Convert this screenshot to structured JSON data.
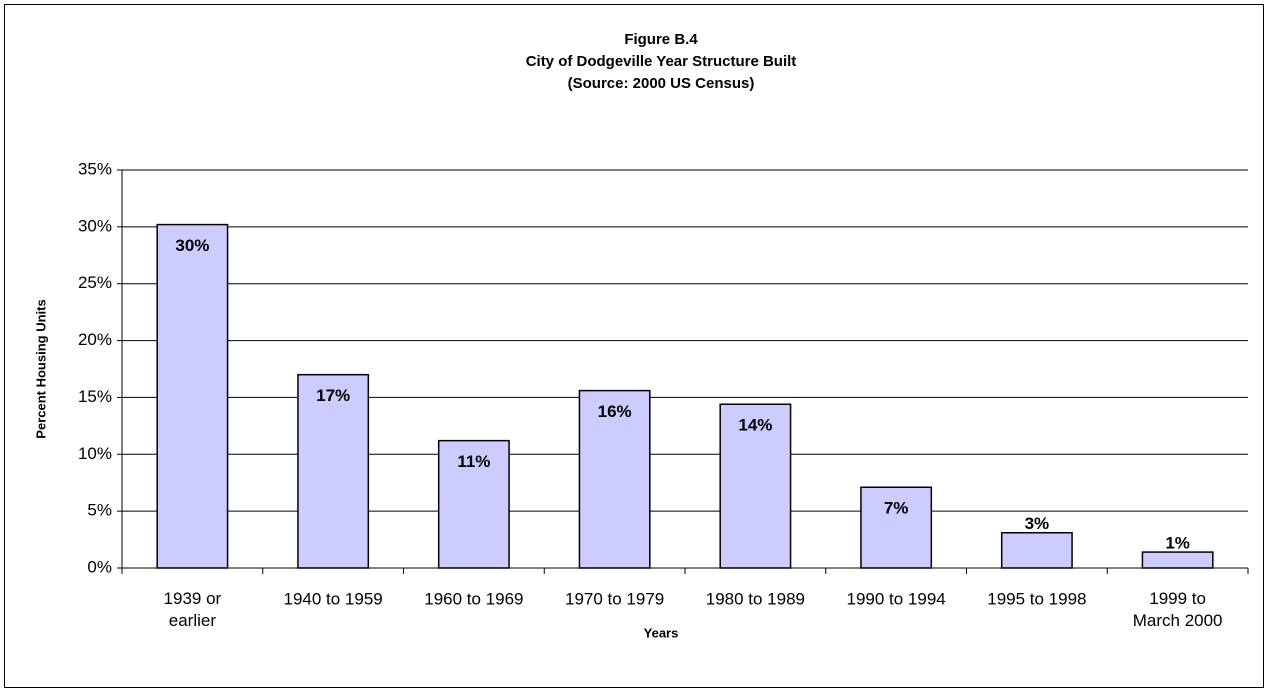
{
  "chart_data": {
    "type": "bar",
    "title": "Figure B.4",
    "subtitle": "City of Dodgeville Year Structure Built",
    "source": "(Source:  2000 US Census)",
    "x_label": "Years",
    "y_label": "Percent Housing Units",
    "categories": [
      "1939 or\nearlier",
      "1940 to 1959",
      "1960 to 1969",
      "1970 to 1979",
      "1980 to 1989",
      "1990 to 1994",
      "1995 to 1998",
      "1999 to\nMarch 2000"
    ],
    "values": [
      30.2,
      17.0,
      11.2,
      15.6,
      14.4,
      7.1,
      3.1,
      1.4
    ],
    "value_labels": [
      "30%",
      "17%",
      "11%",
      "16%",
      "14%",
      "7%",
      "3%",
      "1%"
    ],
    "color": "#ccccff",
    "ylim": [
      0,
      35
    ],
    "yticks": [
      {
        "value": 0,
        "label": "0%"
      },
      {
        "value": 5,
        "label": "5%"
      },
      {
        "value": 10,
        "label": "10%"
      },
      {
        "value": 15,
        "label": "15%"
      },
      {
        "value": 20,
        "label": "20%"
      },
      {
        "value": 25,
        "label": "25%"
      },
      {
        "value": 30,
        "label": "30%"
      },
      {
        "value": 35,
        "label": "35%"
      }
    ],
    "grid": true
  }
}
